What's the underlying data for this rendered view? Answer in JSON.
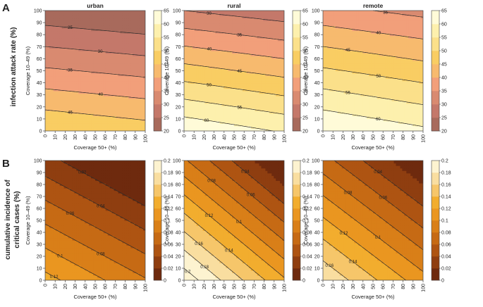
{
  "figure": {
    "row_labels": [
      {
        "letter": "A",
        "label": "infection attack rate (%)"
      },
      {
        "letter": "B",
        "label_line1": "cumulative incidence of",
        "label_line2": "critical cases (%)"
      }
    ]
  },
  "chart_data": [
    {
      "type": "heatmap",
      "subtype": "filled-contour",
      "row": "A",
      "title": "urban",
      "xlabel": "Coverage 50+ (%)",
      "ylabel": "Coverage 10–49 (%)",
      "xlim": [
        0,
        100
      ],
      "ylim": [
        0,
        100
      ],
      "xticks": [
        "0",
        "10",
        "20",
        "30",
        "40",
        "50",
        "60",
        "70",
        "80",
        "90",
        "100"
      ],
      "yticks": [
        "0",
        "10",
        "20",
        "30",
        "40",
        "50",
        "60",
        "70",
        "80",
        "90",
        "100"
      ],
      "z_at_corners": {
        "x0_y0": 50,
        "x100_y0": 47.5,
        "x0_y100": 21.5,
        "x100_y100": 19.5
      },
      "colorbar": {
        "min": 20,
        "max": 65,
        "step": 5,
        "ticks": [
          "65",
          "60",
          "55",
          "50",
          "45",
          "40",
          "35",
          "30",
          "25",
          "20"
        ]
      },
      "contour_levels": [
        25,
        30,
        35,
        40,
        45
      ],
      "contour_labels": [
        {
          "value": "25"
        },
        {
          "value": "30"
        },
        {
          "value": "35"
        },
        {
          "value": "40"
        },
        {
          "value": "45"
        }
      ]
    },
    {
      "type": "heatmap",
      "subtype": "filled-contour",
      "row": "A",
      "title": "rural",
      "xlabel": "Coverage 50+ (%)",
      "ylabel": "Coverage 10–49 (%)",
      "xlim": [
        0,
        100
      ],
      "ylim": [
        0,
        100
      ],
      "xticks": [
        "0",
        "10",
        "20",
        "30",
        "40",
        "50",
        "60",
        "70",
        "80",
        "90",
        "100"
      ],
      "yticks": [
        "0",
        "10",
        "20",
        "30",
        "40",
        "50",
        "60",
        "70",
        "80",
        "90",
        "100"
      ],
      "z_at_corners": {
        "x0_y0": 64,
        "x100_y0": 59.5,
        "x0_y100": 30,
        "x100_y100": 27
      },
      "colorbar": {
        "min": 20,
        "max": 65,
        "step": 5,
        "ticks": [
          "65",
          "60",
          "55",
          "50",
          "45",
          "40",
          "35",
          "30",
          "25",
          "20"
        ]
      },
      "contour_levels": [
        30,
        35,
        40,
        45,
        50,
        55,
        60
      ],
      "contour_labels": [
        {
          "value": "30"
        },
        {
          "value": "35"
        },
        {
          "value": "40"
        },
        {
          "value": "45"
        },
        {
          "value": "50"
        },
        {
          "value": "55"
        },
        {
          "value": "60"
        }
      ]
    },
    {
      "type": "heatmap",
      "subtype": "filled-contour",
      "row": "A",
      "title": "remote",
      "xlabel": "Coverage 50+ (%)",
      "ylabel": "Coverage 10–49 (%)",
      "xlim": [
        0,
        100
      ],
      "ylim": [
        0,
        100
      ],
      "xticks": [
        "0",
        "10",
        "20",
        "30",
        "40",
        "50",
        "60",
        "70",
        "80",
        "90",
        "100"
      ],
      "yticks": [
        "0",
        "10",
        "20",
        "30",
        "40",
        "50",
        "60",
        "70",
        "80",
        "90",
        "100"
      ],
      "z_at_corners": {
        "x0_y0": 65,
        "x100_y0": 61,
        "x0_y100": 36.5,
        "x100_y100": 33.5
      },
      "colorbar": {
        "min": 20,
        "max": 65,
        "step": 5,
        "ticks": [
          "65",
          "60",
          "55",
          "50",
          "45",
          "40",
          "35",
          "30",
          "25",
          "20"
        ]
      },
      "contour_levels": [
        35,
        40,
        45,
        50,
        55,
        60
      ],
      "contour_labels": [
        {
          "value": "35"
        },
        {
          "value": "40"
        },
        {
          "value": "45"
        },
        {
          "value": "50"
        },
        {
          "value": "55"
        },
        {
          "value": "60"
        }
      ]
    },
    {
      "type": "heatmap",
      "subtype": "filled-contour",
      "row": "B",
      "title": "",
      "xlabel": "Coverage 50+ (%)",
      "ylabel": "Coverage 10–49 (%)",
      "xlim": [
        0,
        100
      ],
      "ylim": [
        0,
        100
      ],
      "xticks": [
        "0",
        "10",
        "20",
        "30",
        "40",
        "50",
        "60",
        "70",
        "80",
        "90",
        "100"
      ],
      "yticks": [
        "0",
        "10",
        "20",
        "30",
        "40",
        "50",
        "60",
        "70",
        "80",
        "90",
        "100"
      ],
      "z_model": {
        "base": 0.127,
        "per_x": -0.00045,
        "per_y": -0.001
      },
      "colorbar": {
        "min": 0,
        "max": 0.2,
        "step": 0.02,
        "ticks": [
          "0.2",
          "0.18",
          "0.16",
          "0.14",
          "0.12",
          "0.1",
          "0.08",
          "0.06",
          "0.04",
          "0.02",
          "0"
        ]
      },
      "contour_levels": [
        0.02,
        0.04,
        0.06,
        0.08,
        0.1,
        0.12
      ],
      "contour_labels": [
        {
          "value": "0.02"
        },
        {
          "value": "0.04"
        },
        {
          "value": "0.06"
        },
        {
          "value": "0.08"
        },
        {
          "value": "0.1"
        },
        {
          "value": "0.12"
        }
      ]
    },
    {
      "type": "heatmap",
      "subtype": "filled-contour",
      "row": "B",
      "title": "",
      "xlabel": "Coverage 50+ (%)",
      "ylabel": "Coverage 10–49 (%)",
      "xlim": [
        0,
        100
      ],
      "ylim": [
        0,
        100
      ],
      "xticks": [
        "0",
        "10",
        "20",
        "30",
        "40",
        "50",
        "60",
        "70",
        "80",
        "90",
        "100"
      ],
      "yticks": [
        "0",
        "10",
        "20",
        "30",
        "40",
        "50",
        "60",
        "70",
        "80",
        "90",
        "100"
      ],
      "z_model": {
        "base": 0.213,
        "per_x": -0.0009,
        "per_y": -0.0013
      },
      "colorbar": {
        "min": 0,
        "max": 0.2,
        "step": 0.02,
        "ticks": [
          "0.2",
          "0.18",
          "0.16",
          "0.14",
          "0.12",
          "0.1",
          "0.08",
          "0.06",
          "0.04",
          "0.02",
          "0"
        ]
      },
      "contour_levels": [
        0.04,
        0.06,
        0.08,
        0.1,
        0.12,
        0.14,
        0.16,
        0.18,
        0.2
      ],
      "contour_labels": [
        {
          "value": "0.04"
        },
        {
          "value": "0.06"
        },
        {
          "value": "0.08"
        },
        {
          "value": "0.1"
        },
        {
          "value": "0.12"
        },
        {
          "value": "0.14"
        },
        {
          "value": "0.16"
        },
        {
          "value": "0.18"
        },
        {
          "value": "0.2"
        }
      ]
    },
    {
      "type": "heatmap",
      "subtype": "filled-contour",
      "row": "B",
      "title": "",
      "xlabel": "Coverage 50+ (%)",
      "ylabel": "Coverage 10–49 (%)",
      "xlim": [
        0,
        100
      ],
      "ylim": [
        0,
        100
      ],
      "xticks": [
        "0",
        "10",
        "20",
        "30",
        "40",
        "50",
        "60",
        "70",
        "80",
        "90",
        "100"
      ],
      "yticks": [
        "0",
        "10",
        "20",
        "30",
        "40",
        "50",
        "60",
        "70",
        "80",
        "90",
        "100"
      ],
      "z_model": {
        "base": 0.178,
        "per_x": -0.0007,
        "per_y": -0.0011
      },
      "colorbar": {
        "min": 0,
        "max": 0.2,
        "step": 0.02,
        "ticks": [
          "0.2",
          "0.18",
          "0.16",
          "0.14",
          "0.12",
          "0.1",
          "0.08",
          "0.06",
          "0.04",
          "0.02",
          "0"
        ]
      },
      "contour_levels": [
        0.04,
        0.06,
        0.08,
        0.1,
        0.12,
        0.14,
        0.16
      ],
      "contour_labels": [
        {
          "value": "0.04"
        },
        {
          "value": "0.06"
        },
        {
          "value": "0.08"
        },
        {
          "value": "0.1"
        },
        {
          "value": "0.12"
        },
        {
          "value": "0.14"
        },
        {
          "value": "0.16"
        }
      ]
    }
  ],
  "colors": {
    "row_a_bands": [
      "#a86a5c",
      "#c4786a",
      "#d98a70",
      "#f29f7a",
      "#f7ba6e",
      "#f9cd63",
      "#fbe08a",
      "#fdf0ad",
      "#fffbd8"
    ],
    "row_b_bands": [
      "#6e2a0e",
      "#8f3e10",
      "#ae5412",
      "#c66a14",
      "#d97f18",
      "#ea9620",
      "#f2ad2e",
      "#f6c66a",
      "#f9dea0",
      "#fdf3d0"
    ]
  }
}
